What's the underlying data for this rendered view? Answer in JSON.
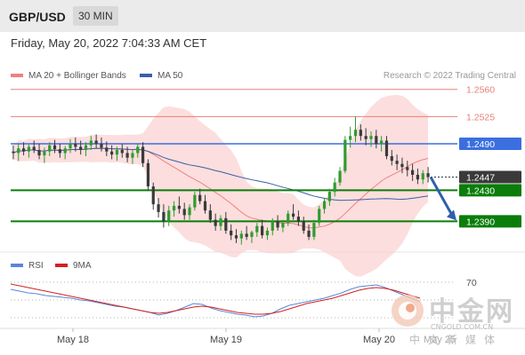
{
  "header": {
    "pair": "GBP/USD",
    "timeframe": "30 MIN",
    "datetime": "Friday, May 20, 2022 7:04:33 AM CET"
  },
  "legend": {
    "ma20": "MA 20 + Bollinger Bands",
    "ma50": "MA 50",
    "credit": "Research © 2022 Trading Central"
  },
  "rsi_legend": {
    "rsi": "RSI",
    "ma9": "9MA"
  },
  "colors": {
    "ma20": "#f08080",
    "ma50": "#3a5fa5",
    "bollinger": "#fbd0d0",
    "bull": "#2e9c2e",
    "bear": "#3a3a3a",
    "resistance": "#e8807a",
    "pivot": "#3b6fe0",
    "support": "#0a7d0a",
    "current": "#3a3a3a",
    "rsi": "#5a86d8",
    "rsi_ma": "#d42020",
    "arrow": "#2f5fa8"
  },
  "watermark": {
    "cn": "中金网",
    "url": "CNGOLD.COM.CN",
    "sub": "中文新媒体",
    "overlay_date": "May 25"
  },
  "chart_data": [
    {
      "type": "candlestick",
      "title": "GBP/USD",
      "x_labels": [
        "May 18",
        "May 19",
        "May 20"
      ],
      "ylim": [
        1.2355,
        1.257
      ],
      "levels": [
        {
          "label": "1.2560",
          "value": 1.256,
          "kind": "resistance"
        },
        {
          "label": "1.2525",
          "value": 1.2525,
          "kind": "resistance"
        },
        {
          "label": "1.2490",
          "value": 1.249,
          "kind": "pivot"
        },
        {
          "label": "1.2447",
          "value": 1.2447,
          "kind": "current"
        },
        {
          "label": "1.2430",
          "value": 1.243,
          "kind": "support"
        },
        {
          "label": "1.2390",
          "value": 1.239,
          "kind": "support"
        }
      ],
      "forecast": {
        "from": 1.2447,
        "to": 1.239,
        "direction": "down"
      },
      "candles": [
        [
          1.248,
          1.2488,
          1.247,
          1.2478
        ],
        [
          1.2478,
          1.249,
          1.2468,
          1.2484
        ],
        [
          1.2484,
          1.2492,
          1.2475,
          1.248
        ],
        [
          1.248,
          1.2489,
          1.2472,
          1.2486
        ],
        [
          1.2486,
          1.2494,
          1.2478,
          1.2482
        ],
        [
          1.2482,
          1.249,
          1.247,
          1.2475
        ],
        [
          1.2475,
          1.2485,
          1.2465,
          1.248
        ],
        [
          1.248,
          1.2492,
          1.2474,
          1.2488
        ],
        [
          1.2488,
          1.2495,
          1.2478,
          1.2483
        ],
        [
          1.2483,
          1.249,
          1.2472,
          1.2478
        ],
        [
          1.2478,
          1.2487,
          1.247,
          1.2484
        ],
        [
          1.2484,
          1.2496,
          1.2478,
          1.249
        ],
        [
          1.249,
          1.2498,
          1.248,
          1.2486
        ],
        [
          1.2486,
          1.2494,
          1.2476,
          1.2482
        ],
        [
          1.2482,
          1.2492,
          1.2474,
          1.2488
        ],
        [
          1.2488,
          1.25,
          1.2482,
          1.2494
        ],
        [
          1.2494,
          1.2502,
          1.2484,
          1.249
        ],
        [
          1.249,
          1.2498,
          1.248,
          1.2485
        ],
        [
          1.2485,
          1.2493,
          1.2474,
          1.248
        ],
        [
          1.248,
          1.2488,
          1.247,
          1.2476
        ],
        [
          1.2476,
          1.2486,
          1.2468,
          1.2482
        ],
        [
          1.2482,
          1.249,
          1.2472,
          1.2478
        ],
        [
          1.2478,
          1.2486,
          1.2466,
          1.2472
        ],
        [
          1.2472,
          1.2482,
          1.2464,
          1.2478
        ],
        [
          1.2478,
          1.249,
          1.2472,
          1.2486
        ],
        [
          1.2486,
          1.2492,
          1.246,
          1.2465
        ],
        [
          1.2465,
          1.247,
          1.243,
          1.2435
        ],
        [
          1.2435,
          1.244,
          1.2405,
          1.2412
        ],
        [
          1.2412,
          1.242,
          1.2395,
          1.2402
        ],
        [
          1.2402,
          1.2412,
          1.2382,
          1.239
        ],
        [
          1.239,
          1.241,
          1.2384,
          1.2404
        ],
        [
          1.2404,
          1.2416,
          1.2396,
          1.241
        ],
        [
          1.241,
          1.2422,
          1.24,
          1.2406
        ],
        [
          1.2406,
          1.2414,
          1.2392,
          1.2398
        ],
        [
          1.2398,
          1.2412,
          1.2392,
          1.2408
        ],
        [
          1.2408,
          1.2428,
          1.2404,
          1.2424
        ],
        [
          1.2424,
          1.2432,
          1.2412,
          1.2416
        ],
        [
          1.2416,
          1.2424,
          1.24,
          1.2404
        ],
        [
          1.2404,
          1.2412,
          1.2388,
          1.2392
        ],
        [
          1.2392,
          1.24,
          1.2378,
          1.2384
        ],
        [
          1.2384,
          1.2398,
          1.2378,
          1.2394
        ],
        [
          1.2394,
          1.2402,
          1.2374,
          1.2378
        ],
        [
          1.2378,
          1.2386,
          1.2366,
          1.2372
        ],
        [
          1.2372,
          1.238,
          1.2362,
          1.2368
        ],
        [
          1.2368,
          1.2378,
          1.236,
          1.2374
        ],
        [
          1.2374,
          1.2384,
          1.2366,
          1.237
        ],
        [
          1.237,
          1.2378,
          1.2362,
          1.2376
        ],
        [
          1.2376,
          1.2388,
          1.237,
          1.2384
        ],
        [
          1.2384,
          1.2392,
          1.2368,
          1.2372
        ],
        [
          1.2372,
          1.2382,
          1.2366,
          1.2378
        ],
        [
          1.2378,
          1.2394,
          1.2372,
          1.239
        ],
        [
          1.239,
          1.2398,
          1.2378,
          1.2382
        ],
        [
          1.2382,
          1.2392,
          1.2376,
          1.2388
        ],
        [
          1.2388,
          1.2404,
          1.2384,
          1.24
        ],
        [
          1.24,
          1.2412,
          1.2392,
          1.2396
        ],
        [
          1.2396,
          1.2404,
          1.2384,
          1.239
        ],
        [
          1.239,
          1.2396,
          1.2374,
          1.2378
        ],
        [
          1.2378,
          1.2386,
          1.2366,
          1.237
        ],
        [
          1.237,
          1.2392,
          1.2366,
          1.2388
        ],
        [
          1.2388,
          1.241,
          1.2384,
          1.2406
        ],
        [
          1.2406,
          1.242,
          1.24,
          1.2416
        ],
        [
          1.2416,
          1.2432,
          1.241,
          1.2428
        ],
        [
          1.2428,
          1.2446,
          1.2422,
          1.244
        ],
        [
          1.244,
          1.246,
          1.2436,
          1.2455
        ],
        [
          1.2455,
          1.25,
          1.2452,
          1.2495
        ],
        [
          1.2495,
          1.2512,
          1.2485,
          1.25
        ],
        [
          1.25,
          1.2525,
          1.2492,
          1.2508
        ],
        [
          1.2508,
          1.2515,
          1.2494,
          1.25
        ],
        [
          1.25,
          1.251,
          1.2488,
          1.2496
        ],
        [
          1.2496,
          1.2506,
          1.2486,
          1.25
        ],
        [
          1.25,
          1.2508,
          1.2484,
          1.249
        ],
        [
          1.249,
          1.25,
          1.248,
          1.2494
        ],
        [
          1.2494,
          1.25,
          1.247,
          1.2474
        ],
        [
          1.2474,
          1.2482,
          1.2462,
          1.2468
        ],
        [
          1.2468,
          1.2476,
          1.2456,
          1.2464
        ],
        [
          1.2464,
          1.2472,
          1.2452,
          1.246
        ],
        [
          1.246,
          1.2468,
          1.2448,
          1.2456
        ],
        [
          1.2456,
          1.2464,
          1.2442,
          1.245
        ],
        [
          1.245,
          1.2458,
          1.2438,
          1.2444
        ],
        [
          1.2444,
          1.2456,
          1.2438,
          1.2452
        ],
        [
          1.2452,
          1.246,
          1.244,
          1.2447
        ]
      ]
    },
    {
      "type": "line",
      "series": [
        {
          "name": "RSI",
          "values": [
            62,
            60,
            58,
            57,
            55,
            54,
            53,
            52,
            50,
            49,
            47,
            45,
            43,
            42,
            40,
            38,
            36,
            33,
            35,
            38,
            42,
            46,
            45,
            41,
            38,
            36,
            34,
            33,
            31,
            32,
            35,
            40,
            44,
            46,
            48,
            50,
            52,
            55,
            58,
            62,
            65,
            66,
            67,
            64,
            60,
            56,
            52,
            48
          ]
        },
        {
          "name": "9MA",
          "values": [
            68,
            66,
            64,
            62,
            60,
            58,
            56,
            54,
            52,
            50,
            48,
            46,
            44,
            42,
            40,
            38,
            36,
            35,
            36,
            38,
            40,
            42,
            43,
            42,
            40,
            38,
            36,
            35,
            34,
            34,
            35,
            37,
            40,
            43,
            46,
            48,
            50,
            52,
            55,
            58,
            61,
            63,
            64,
            63,
            61,
            58,
            55,
            52
          ]
        }
      ],
      "levels": [
        {
          "label": "70",
          "value": 70
        }
      ],
      "ylim": [
        20,
        80
      ]
    }
  ]
}
